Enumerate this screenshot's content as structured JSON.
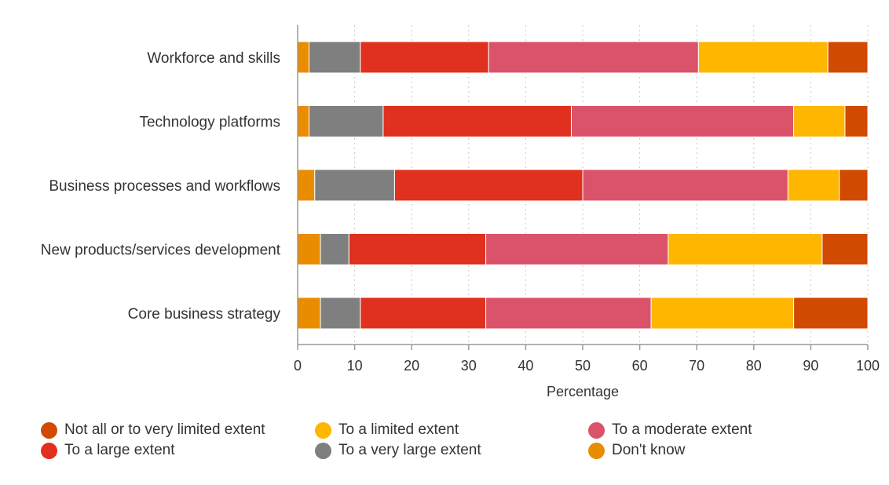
{
  "chart_data": {
    "type": "bar",
    "orientation": "horizontal",
    "stacked": true,
    "categories": [
      "Workforce and skills",
      "Technology platforms",
      "Business processes and workflows",
      "New products/services development",
      "Core business strategy"
    ],
    "series": [
      {
        "name": "Don't know",
        "color": "#EA8C00",
        "values": [
          2,
          2,
          3,
          4,
          4
        ]
      },
      {
        "name": "To a very large extent",
        "color": "#7F7F7F",
        "values": [
          9,
          13,
          14,
          5,
          7
        ]
      },
      {
        "name": "To a large extent",
        "color": "#E0301E",
        "values": [
          22.5,
          33,
          33,
          24,
          22
        ]
      },
      {
        "name": "To a moderate extent",
        "color": "#DB536A",
        "values": [
          36.8,
          39,
          36,
          32,
          29
        ]
      },
      {
        "name": "To a limited extent",
        "color": "#FFB600",
        "values": [
          22.7,
          9,
          9,
          27,
          25
        ]
      },
      {
        "name": "Not all or to very limited extent",
        "color": "#D04A02",
        "values": [
          7,
          4,
          5,
          8,
          13
        ]
      }
    ],
    "xlabel": "Percentage",
    "xlim": [
      0,
      100
    ],
    "xticks": [
      "0",
      "10",
      "20",
      "30",
      "40",
      "50",
      "60",
      "70",
      "80",
      "90",
      "100"
    ],
    "grid": "vertical dotted",
    "legend": {
      "placement": "bottom",
      "order": [
        "Not all or to very limited extent",
        "To a limited extent",
        "To a moderate extent",
        "To a large extent",
        "To a very large extent",
        "Don't know"
      ]
    }
  }
}
